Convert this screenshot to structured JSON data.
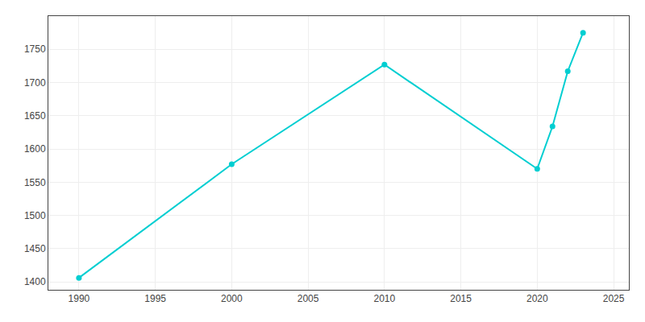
{
  "chart_data": {
    "type": "line",
    "x": [
      1990,
      2000,
      2010,
      2020,
      2021,
      2022,
      2023
    ],
    "values": [
      1406,
      1577,
      1727,
      1570,
      1634,
      1717,
      1775
    ],
    "color": "#00CED1",
    "marker": "circle",
    "xlim": [
      1988,
      2026
    ],
    "ylim": [
      1388,
      1800
    ],
    "xticks": [
      1990,
      1995,
      2000,
      2005,
      2010,
      2015,
      2020,
      2025
    ],
    "yticks": [
      1400,
      1450,
      1500,
      1550,
      1600,
      1650,
      1700,
      1750
    ],
    "grid": true
  }
}
